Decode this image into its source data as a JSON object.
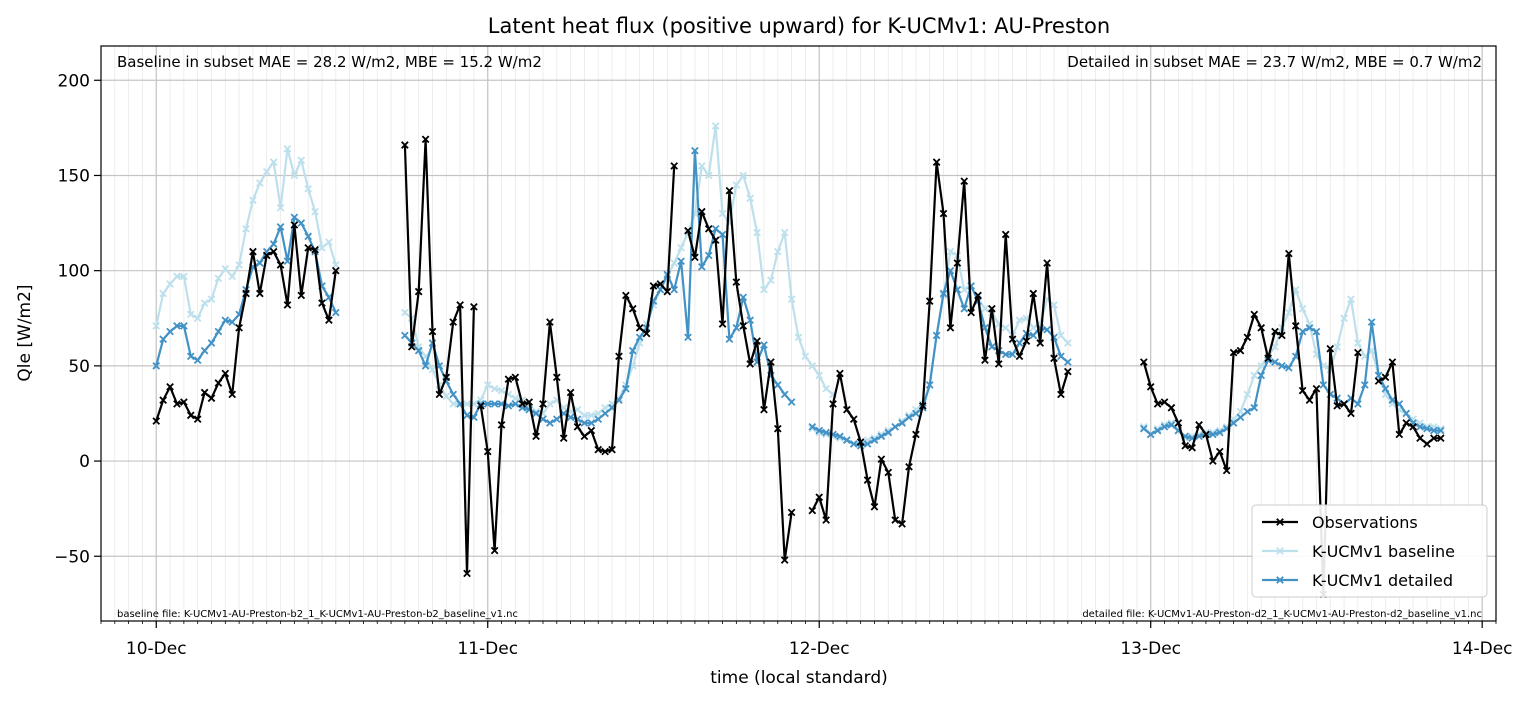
{
  "chart_data": {
    "type": "line",
    "title": "Latent heat flux (positive upward) for K-UCMv1: AU-Preston",
    "xlabel": "time (local standard)",
    "ylabel": "Qle [W/m2]",
    "ylim": [
      -84,
      218
    ],
    "yticks": [
      -50,
      0,
      50,
      100,
      150,
      200
    ],
    "xlim": [
      "2019-12-09T20:00",
      "2019-12-14T01:00"
    ],
    "xtick_labels": [
      {
        "t": "2019-12-10T00:00",
        "label": "10-Dec"
      },
      {
        "t": "2019-12-11T00:00",
        "label": "11-Dec"
      },
      {
        "t": "2019-12-12T00:00",
        "label": "12-Dec"
      },
      {
        "t": "2019-12-13T00:00",
        "label": "13-Dec"
      },
      {
        "t": "2019-12-14T00:00",
        "label": "14-Dec"
      }
    ],
    "grid": true,
    "legend_position": "bottom-right",
    "annotations": {
      "baseline_stats": "Baseline in subset MAE = 28.2 W/m2, MBE = 15.2 W/m2",
      "detailed_stats": "Detailed in subset MAE = 23.7 W/m2, MBE = 0.7 W/m2",
      "baseline_file": "baseline file: K-UCMv1-AU-Preston-b2_1_K-UCMv1-AU-Preston-b2_baseline_v1.nc",
      "detailed_file": "detailed file: K-UCMv1-AU-Preston-d2_1_K-UCMv1-AU-Preston-d2_baseline_v1.nc"
    },
    "series": [
      {
        "name": "Observations",
        "color": "#000000",
        "marker": "x",
        "segments": [
          {
            "start": "2019-12-10T00:00",
            "step_minutes": 30,
            "values": [
              21,
              32,
              39,
              30,
              31,
              24,
              22,
              36,
              33,
              41,
              46,
              35,
              70,
              88,
              110,
              88,
              108,
              110,
              103,
              82,
              124,
              87,
              112,
              111,
              83,
              74,
              100
            ]
          },
          {
            "start": "2019-12-10T18:00",
            "step_minutes": 30,
            "values": [
              166,
              60,
              89,
              169,
              68,
              35,
              44,
              73,
              82,
              -59,
              81
            ]
          },
          {
            "start": "2019-12-10T23:30",
            "step_minutes": 30,
            "values": [
              29,
              5,
              -47,
              19,
              43,
              44,
              30,
              31,
              13,
              30,
              73,
              44,
              12,
              36,
              18,
              13,
              16,
              6,
              5,
              6,
              55,
              87,
              80,
              70,
              67,
              92,
              93,
              89,
              155
            ]
          },
          {
            "start": "2019-12-11T14:30",
            "step_minutes": 30,
            "values": [
              121,
              107,
              131,
              122,
              116,
              72,
              142,
              94,
              71,
              51,
              63,
              27,
              52,
              17,
              -52,
              -27
            ]
          },
          {
            "start": "2019-12-11T23:30",
            "step_minutes": 30,
            "values": [
              -26,
              -19,
              -31,
              30,
              46,
              27,
              22,
              10,
              -10,
              -24,
              1,
              -6,
              -31,
              -33,
              -3,
              14,
              29,
              84,
              157,
              130,
              70,
              104,
              147,
              78,
              87,
              53,
              80,
              51,
              119,
              64,
              55,
              63,
              88,
              62,
              104,
              54,
              35,
              47
            ]
          },
          {
            "start": "2019-12-12T23:30",
            "step_minutes": 30,
            "values": [
              52,
              39,
              30,
              31,
              28,
              20,
              8,
              7,
              19,
              14,
              0,
              5,
              -5,
              57,
              58,
              65,
              77,
              70,
              54,
              68,
              66,
              109,
              71,
              37,
              32,
              38,
              -70,
              59,
              29,
              30,
              25,
              57
            ]
          },
          {
            "start": "2019-12-13T16:30",
            "step_minutes": 30,
            "values": [
              42,
              44,
              52,
              14,
              20,
              18,
              12,
              9,
              12,
              12
            ]
          }
        ]
      },
      {
        "name": "K-UCMv1 baseline",
        "color": "#bde0ec",
        "marker": "x",
        "segments": [
          {
            "start": "2019-12-10T00:00",
            "step_minutes": 30,
            "values": [
              71,
              88,
              93,
              97,
              97,
              77,
              75,
              83,
              85,
              96,
              101,
              97,
              103,
              122,
              137,
              146,
              152,
              157,
              133,
              164,
              150,
              158,
              143,
              131,
              112,
              115,
              103
            ]
          },
          {
            "start": "2019-12-10T18:00",
            "step_minutes": 30,
            "values": [
              78,
              75,
              60,
              55,
              48,
              40,
              34,
              30,
              30,
              30,
              30,
              32,
              40,
              38,
              37,
              35,
              33,
              32,
              28,
              26,
              25,
              30,
              32,
              28,
              26,
              27,
              24,
              24,
              25,
              28,
              30,
              33,
              40,
              50,
              62,
              72,
              82,
              90,
              97,
              104,
              112,
              120,
              130,
              155,
              150,
              176,
              130,
              125,
              145,
              150,
              138,
              120,
              90,
              95,
              110,
              120,
              85,
              65,
              55,
              50,
              45,
              38,
              35
            ]
          },
          {
            "start": "2019-12-11T23:30",
            "step_minutes": 30,
            "values": [
              17,
              15,
              14,
              13,
              12,
              11,
              9,
              10,
              11,
              12,
              14,
              16,
              18,
              21,
              24,
              27,
              30,
              40,
              66,
              87,
              110,
              108,
              90,
              92,
              85,
              80,
              78,
              72,
              70,
              66,
              74,
              75,
              70,
              72,
              85,
              82,
              66,
              62
            ]
          },
          {
            "start": "2019-12-12T23:30",
            "step_minutes": 30,
            "values": [
              18,
              14,
              17,
              19,
              20,
              16,
              12,
              13,
              14,
              15,
              15,
              16,
              18,
              22,
              26,
              35,
              45,
              50,
              55,
              60,
              70,
              78,
              90,
              80,
              72,
              56,
              50,
              48,
              60,
              75,
              85,
              62,
              55,
              58,
              45,
              35,
              30,
              27,
              25,
              22,
              20,
              18,
              18,
              17
            ]
          }
        ]
      },
      {
        "name": "K-UCMv1 detailed",
        "color": "#4292c6",
        "marker": "x",
        "segments": [
          {
            "start": "2019-12-10T00:00",
            "step_minutes": 30,
            "values": [
              50,
              64,
              68,
              71,
              71,
              55,
              53,
              58,
              62,
              68,
              74,
              73,
              77,
              90,
              102,
              104,
              110,
              114,
              123,
              105,
              128,
              125,
              118,
              110,
              92,
              86,
              78
            ]
          },
          {
            "start": "2019-12-10T18:00",
            "step_minutes": 30,
            "values": [
              66,
              62,
              58,
              50,
              62,
              50,
              42,
              35,
              30,
              24,
              23,
              30,
              30,
              30,
              30,
              29,
              30,
              28,
              27,
              25,
              22,
              20,
              22,
              25,
              23,
              22,
              20,
              20,
              22,
              25,
              28,
              32,
              38,
              58,
              65,
              70,
              84,
              90,
              98,
              90,
              105,
              65,
              163,
              102,
              108,
              122,
              119,
              64,
              70,
              86,
              74,
              52,
              61,
              45,
              40,
              35,
              31
            ]
          },
          {
            "start": "2019-12-11T23:30",
            "step_minutes": 30,
            "values": [
              18,
              16,
              15,
              14,
              13,
              11,
              9,
              8,
              9,
              11,
              13,
              15,
              18,
              20,
              23,
              25,
              28,
              40,
              66,
              88,
              100,
              90,
              80,
              92,
              84,
              70,
              60,
              58,
              56,
              56,
              62,
              67,
              66,
              70,
              69,
              65,
              55,
              52
            ]
          },
          {
            "start": "2019-12-12T23:30",
            "step_minutes": 30,
            "values": [
              17,
              14,
              16,
              18,
              19,
              16,
              13,
              12,
              13,
              14,
              14,
              15,
              17,
              20,
              23,
              26,
              28,
              45,
              53,
              52,
              50,
              49,
              55,
              68,
              70,
              68,
              40,
              35,
              33,
              30,
              33,
              30,
              40,
              73,
              45,
              38,
              32,
              30,
              25,
              20,
              18,
              17,
              16,
              16
            ]
          }
        ]
      }
    ]
  }
}
